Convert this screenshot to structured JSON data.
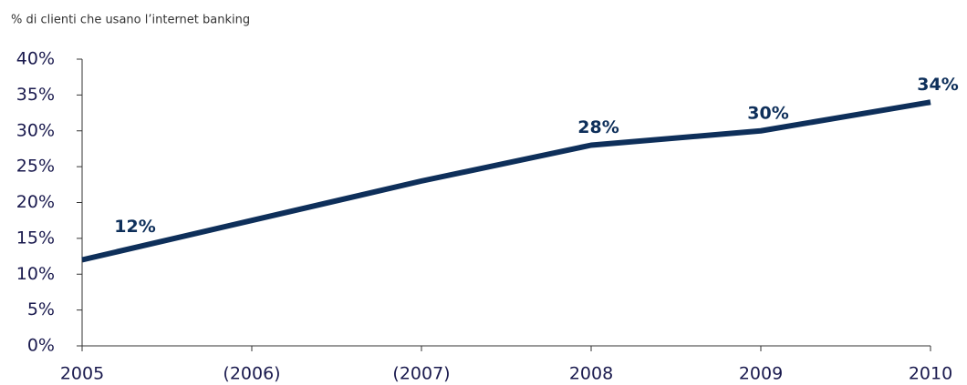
{
  "chart_data": {
    "type": "line",
    "title": "% di clienti che usano l’internet banking",
    "categories": [
      "2005",
      "(2006)",
      "(2007)",
      "2008",
      "2009",
      "2010"
    ],
    "series": [
      {
        "color": "#0e2f5a",
        "values": [
          12,
          17.5,
          23,
          28,
          30,
          34
        ],
        "value_labels": [
          "12%",
          null,
          null,
          "28%",
          "30%",
          "34%"
        ]
      }
    ],
    "ylim": [
      0,
      40
    ],
    "yticks": [
      {
        "value": 0,
        "label": "0%"
      },
      {
        "value": 5,
        "label": "5%"
      },
      {
        "value": 10,
        "label": "10%"
      },
      {
        "value": 15,
        "label": "15%"
      },
      {
        "value": 20,
        "label": "20%"
      },
      {
        "value": 25,
        "label": "25%"
      },
      {
        "value": 30,
        "label": "30%"
      },
      {
        "value": 35,
        "label": "35%"
      },
      {
        "value": 40,
        "label": "40%"
      }
    ]
  }
}
